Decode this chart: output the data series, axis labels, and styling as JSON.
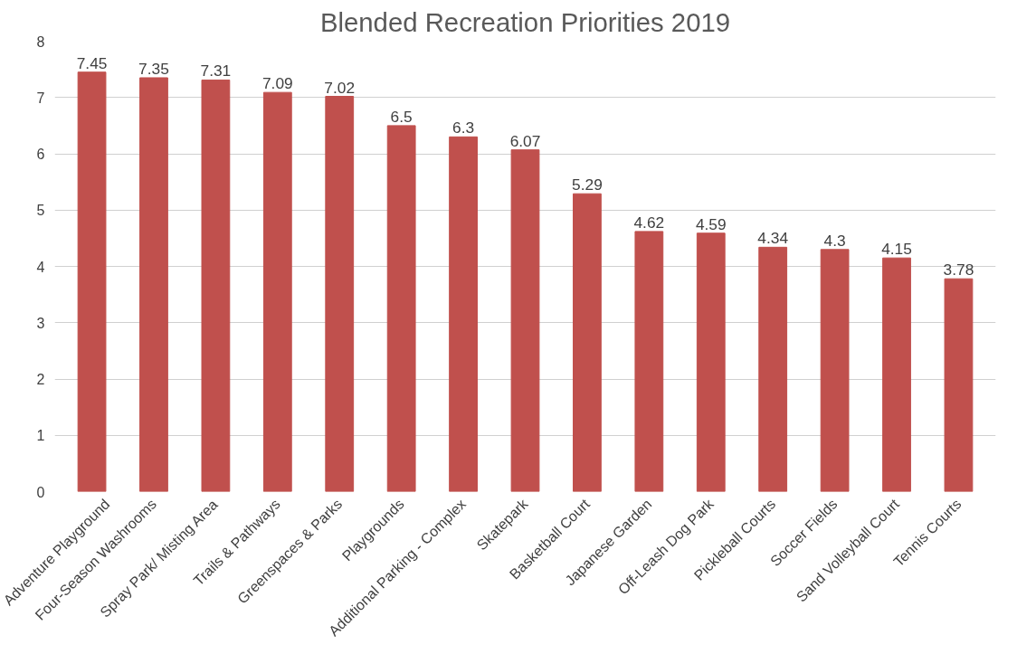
{
  "chart_data": {
    "type": "bar",
    "title": "Blended Recreation Priorities 2019",
    "categories": [
      "Adventure Playground",
      "Four-Season Washrooms",
      "Spray Park/ Misting Area",
      "Trails & Pathways",
      "Greenspaces & Parks",
      "Playgrounds",
      "Additional Parking - Complex",
      "Skatepark",
      "Basketball Court",
      "Japanese Garden",
      "Off-Leash Dog Park",
      "Pickleball Courts",
      "Soccer Fields",
      "Sand Volleyball Court",
      "Tennis Courts"
    ],
    "values": [
      7.45,
      7.35,
      7.31,
      7.09,
      7.02,
      6.5,
      6.3,
      6.07,
      5.29,
      4.62,
      4.59,
      4.34,
      4.3,
      4.15,
      3.78
    ],
    "color": "#c0504d",
    "ylim": [
      0,
      8
    ],
    "yticks": [
      0,
      1,
      2,
      3,
      4,
      5,
      6,
      7,
      8
    ],
    "grid": "y",
    "data_labels": true
  }
}
